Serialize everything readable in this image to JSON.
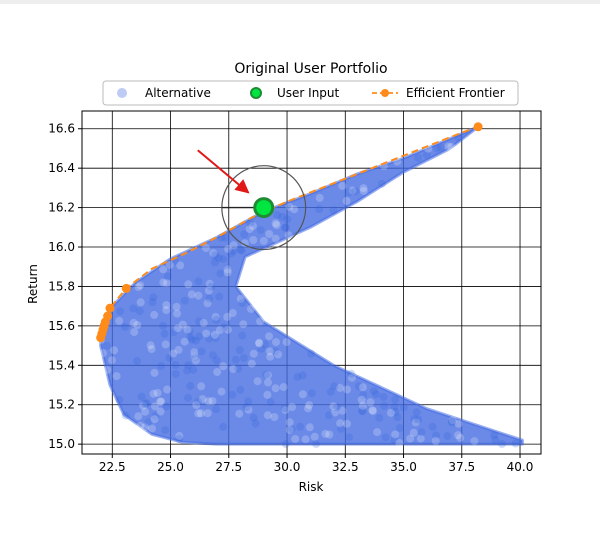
{
  "chart_data": {
    "type": "scatter",
    "title": "Original User Portfolio",
    "xlabel": "Risk",
    "ylabel": "Return",
    "xlim": [
      21.2,
      40.9
    ],
    "ylim": [
      14.95,
      16.69
    ],
    "xticks": [
      22.5,
      25.0,
      27.5,
      30.0,
      32.5,
      35.0,
      37.5,
      40.0
    ],
    "xtick_labels": [
      "22.5",
      "25.0",
      "27.5",
      "30.0",
      "32.5",
      "35.0",
      "37.5",
      "40.0"
    ],
    "yticks": [
      15.0,
      15.2,
      15.4,
      15.6,
      15.8,
      16.0,
      16.2,
      16.4,
      16.6
    ],
    "ytick_labels": [
      "15.0",
      "15.2",
      "15.4",
      "15.6",
      "15.8",
      "16.0",
      "16.2",
      "16.4",
      "16.6"
    ],
    "grid": true,
    "legend_position": "top-center",
    "legend": [
      "Alternative",
      "User Input",
      "Efficient Frontier"
    ],
    "series": [
      {
        "name": "Alternative",
        "kind": "scatter",
        "color": "#4169E1",
        "region": {
          "upper_boundary": [
            [
              22.0,
              15.55
            ],
            [
              22.5,
              15.7
            ],
            [
              23.5,
              15.82
            ],
            [
              25.0,
              15.94
            ],
            [
              27.0,
              16.05
            ],
            [
              29.0,
              16.18
            ],
            [
              31.0,
              16.27
            ],
            [
              33.0,
              16.37
            ],
            [
              35.0,
              16.45
            ],
            [
              37.0,
              16.55
            ],
            [
              38.2,
              16.61
            ]
          ],
          "lower_boundary": [
            [
              22.0,
              15.5
            ],
            [
              22.4,
              15.3
            ],
            [
              23.0,
              15.15
            ],
            [
              24.2,
              15.05
            ],
            [
              25.5,
              15.01
            ],
            [
              27.0,
              15.0
            ],
            [
              40.1,
              15.0
            ]
          ],
          "spine_boundary": [
            [
              40.1,
              15.02
            ],
            [
              36.0,
              15.18
            ],
            [
              32.0,
              15.4
            ],
            [
              29.0,
              15.62
            ],
            [
              27.8,
              15.8
            ],
            [
              28.2,
              15.95
            ],
            [
              29.5,
              16.02
            ],
            [
              31.0,
              16.1
            ],
            [
              33.0,
              16.23
            ],
            [
              35.0,
              16.38
            ],
            [
              37.0,
              16.5
            ],
            [
              38.2,
              16.61
            ]
          ]
        }
      },
      {
        "name": "User Input",
        "kind": "scatter",
        "color": "#00E640",
        "edge_color": "#1E8C32",
        "points": [
          [
            29.0,
            16.2
          ]
        ]
      },
      {
        "name": "Efficient Frontier",
        "kind": "line",
        "color": "#FF8C1A",
        "points": [
          [
            22.0,
            15.54
          ],
          [
            22.05,
            15.58
          ],
          [
            22.1,
            15.61
          ],
          [
            22.2,
            15.64
          ],
          [
            22.4,
            15.69
          ],
          [
            23.1,
            15.79
          ],
          [
            24.2,
            15.89
          ],
          [
            25.5,
            15.96
          ],
          [
            27.0,
            16.05
          ],
          [
            28.5,
            16.15
          ],
          [
            30.0,
            16.23
          ],
          [
            31.5,
            16.3
          ],
          [
            33.0,
            16.37
          ],
          [
            34.5,
            16.44
          ],
          [
            36.0,
            16.51
          ],
          [
            37.5,
            16.58
          ],
          [
            38.2,
            16.61
          ]
        ],
        "markers": [
          [
            22.0,
            15.54
          ],
          [
            22.05,
            15.56
          ],
          [
            22.1,
            15.58
          ],
          [
            22.15,
            15.6
          ],
          [
            22.2,
            15.62
          ],
          [
            22.3,
            15.65
          ],
          [
            22.4,
            15.69
          ],
          [
            23.1,
            15.79
          ],
          [
            38.2,
            16.61
          ]
        ]
      }
    ],
    "annotations": [
      {
        "kind": "arrow",
        "color": "#E01818",
        "from": [
          27.8,
          16.42
        ],
        "to": [
          28.6,
          16.2
        ]
      },
      {
        "kind": "circle",
        "color": "#555555",
        "center": [
          29.0,
          16.2
        ],
        "radius_x_data": 1.8
      }
    ]
  }
}
